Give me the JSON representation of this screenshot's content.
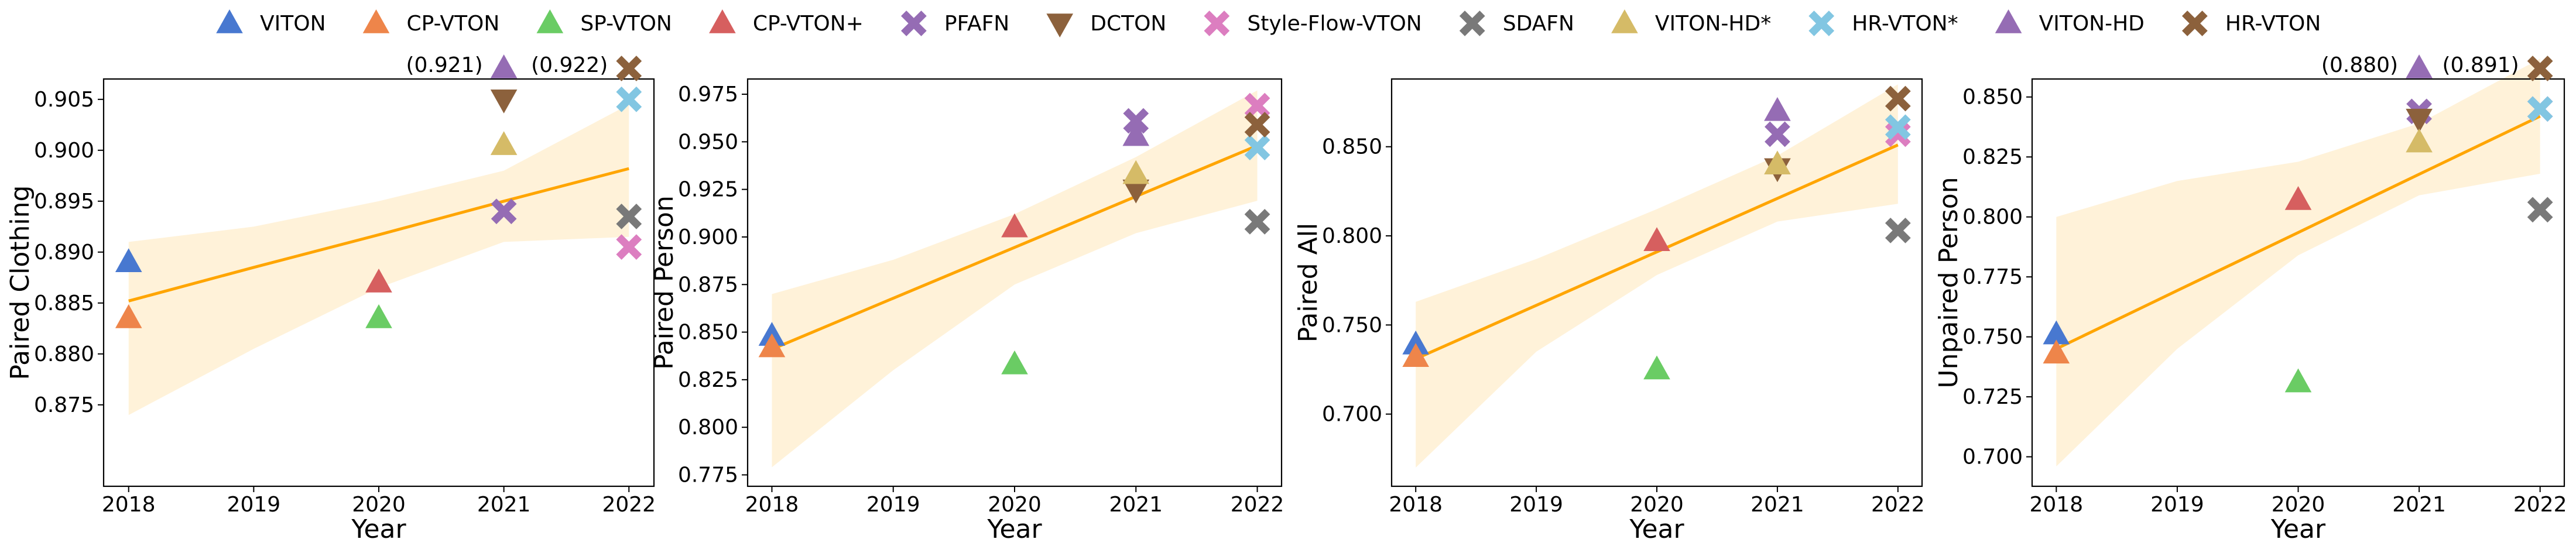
{
  "legend": [
    {
      "name": "VITON",
      "color": "#4878d0",
      "marker": "^"
    },
    {
      "name": "CP-VTON",
      "color": "#ee854a",
      "marker": "^"
    },
    {
      "name": "SP-VTON",
      "color": "#6acc64",
      "marker": "^"
    },
    {
      "name": "CP-VTON+",
      "color": "#d65f5f",
      "marker": "^"
    },
    {
      "name": "PFAFN",
      "color": "#956cb4",
      "marker": "x"
    },
    {
      "name": "DCTON",
      "color": "#8c613c",
      "marker": "v"
    },
    {
      "name": "Style-Flow-VTON",
      "color": "#dc7ec0",
      "marker": "x"
    },
    {
      "name": "SDAFN",
      "color": "#797979",
      "marker": "x"
    },
    {
      "name": "VITON-HD*",
      "color": "#d5bb67",
      "marker": "^"
    },
    {
      "name": "HR-VTON*",
      "color": "#82c6e2",
      "marker": "x"
    },
    {
      "name": "VITON-HD",
      "color": "#956cb4",
      "marker": "^"
    },
    {
      "name": "HR-VTON",
      "color": "#8c613c",
      "marker": "x"
    }
  ],
  "fit_color": "#ffa500",
  "chart_data": [
    {
      "type": "scatter",
      "ylabel": "Paired Clothing",
      "xlabel": "Year",
      "xlim": [
        2017.8,
        2022.2
      ],
      "xticks": [
        2018,
        2019,
        2020,
        2021,
        2022
      ],
      "ylim": [
        0.867,
        0.907
      ],
      "yticks": [
        0.875,
        {
          "value": 0.88,
          "label": "0.880"
        },
        0.885,
        {
          "value": 0.89,
          "label": "0.890"
        },
        0.895,
        {
          "value": 0.9,
          "label": "0.900"
        },
        0.905
      ],
      "series": [
        {
          "x": [
            2018
          ],
          "values": [
            0.889
          ]
        },
        {
          "x": [
            2018
          ],
          "values": [
            0.8835
          ]
        },
        {
          "x": [
            2020
          ],
          "values": [
            0.8835
          ]
        },
        {
          "x": [
            2020
          ],
          "values": [
            0.887
          ]
        },
        {
          "x": [
            2021
          ],
          "values": [
            0.894
          ]
        },
        {
          "x": [
            2021
          ],
          "values": [
            0.905
          ]
        },
        {
          "x": [
            2022
          ],
          "values": [
            0.8905
          ]
        },
        {
          "x": [
            2022
          ],
          "values": [
            0.8935
          ]
        },
        {
          "x": [
            2021
          ],
          "values": [
            0.9005
          ]
        },
        {
          "x": [
            2022
          ],
          "values": [
            0.905
          ]
        },
        {
          "x": [
            2021
          ],
          "values": [
            0.921
          ],
          "value_labels": [
            "(0.921)"
          ]
        },
        {
          "x": [
            2022
          ],
          "values": [
            0.922
          ],
          "value_labels": [
            "(0.922)"
          ]
        }
      ],
      "fit": {
        "x": [
          2018,
          2019,
          2020,
          2021,
          2022
        ],
        "values": [
          0.8852,
          0.8885,
          0.8917,
          0.895,
          0.8982
        ],
        "lower": [
          0.874,
          0.8805,
          0.8865,
          0.891,
          0.8915
        ],
        "upper": [
          0.891,
          0.8925,
          0.895,
          0.898,
          0.9045
        ]
      }
    },
    {
      "type": "scatter",
      "ylabel": "Paired Person",
      "xlabel": "Year",
      "xlim": [
        2017.8,
        2022.2
      ],
      "xticks": [
        2018,
        2019,
        2020,
        2021,
        2022
      ],
      "ylim": [
        0.769,
        0.983
      ],
      "yticks": [
        0.775,
        {
          "value": 0.8,
          "label": "0.800"
        },
        0.825,
        {
          "value": 0.85,
          "label": "0.850"
        },
        0.875,
        {
          "value": 0.9,
          "label": "0.900"
        },
        0.925,
        {
          "value": 0.95,
          "label": "0.950"
        },
        0.975
      ],
      "series": [
        {
          "x": [
            2018
          ],
          "values": [
            0.848
          ]
        },
        {
          "x": [
            2018
          ],
          "values": [
            0.842
          ]
        },
        {
          "x": [
            2020
          ],
          "values": [
            0.833
          ]
        },
        {
          "x": [
            2020
          ],
          "values": [
            0.905
          ]
        },
        {
          "x": [
            2021
          ],
          "values": [
            0.961
          ]
        },
        {
          "x": [
            2021
          ],
          "values": [
            0.925
          ]
        },
        {
          "x": [
            2022
          ],
          "values": [
            0.969
          ]
        },
        {
          "x": [
            2022
          ],
          "values": [
            0.908
          ]
        },
        {
          "x": [
            2021
          ],
          "values": [
            0.933
          ]
        },
        {
          "x": [
            2022
          ],
          "values": [
            0.947
          ]
        },
        {
          "x": [
            2021
          ],
          "values": [
            0.953
          ]
        },
        {
          "x": [
            2022
          ],
          "values": [
            0.959
          ]
        }
      ],
      "fit": {
        "x": [
          2018,
          2019,
          2020,
          2021,
          2022
        ],
        "values": [
          0.841,
          0.8678,
          0.8945,
          0.9213,
          0.948
        ],
        "lower": [
          0.779,
          0.83,
          0.875,
          0.902,
          0.919
        ],
        "upper": [
          0.87,
          0.888,
          0.912,
          0.942,
          0.977
        ]
      }
    },
    {
      "type": "scatter",
      "ylabel": "Paired All",
      "xlabel": "Year",
      "xlim": [
        2017.8,
        2022.2
      ],
      "xticks": [
        2018,
        2019,
        2020,
        2021,
        2022
      ],
      "ylim": [
        0.6595,
        0.888
      ],
      "yticks": [
        {
          "value": 0.7,
          "label": "0.700"
        },
        {
          "value": 0.75,
          "label": "0.750"
        },
        {
          "value": 0.8,
          "label": "0.800"
        },
        {
          "value": 0.85,
          "label": "0.850"
        }
      ],
      "series": [
        {
          "x": [
            2018
          ],
          "values": [
            0.739
          ]
        },
        {
          "x": [
            2018
          ],
          "values": [
            0.732
          ]
        },
        {
          "x": [
            2020
          ],
          "values": [
            0.725
          ]
        },
        {
          "x": [
            2020
          ],
          "values": [
            0.797
          ]
        },
        {
          "x": [
            2021
          ],
          "values": [
            0.857
          ]
        },
        {
          "x": [
            2021
          ],
          "values": [
            0.838
          ]
        },
        {
          "x": [
            2022
          ],
          "values": [
            0.857
          ]
        },
        {
          "x": [
            2022
          ],
          "values": [
            0.803
          ]
        },
        {
          "x": [
            2021
          ],
          "values": [
            0.84
          ]
        },
        {
          "x": [
            2022
          ],
          "values": [
            0.861
          ]
        },
        {
          "x": [
            2021
          ],
          "values": [
            0.87
          ]
        },
        {
          "x": [
            2022
          ],
          "values": [
            0.877
          ]
        }
      ],
      "fit": {
        "x": [
          2018,
          2019,
          2020,
          2021,
          2022
        ],
        "values": [
          0.731,
          0.761,
          0.791,
          0.821,
          0.851
        ],
        "lower": [
          0.67,
          0.735,
          0.778,
          0.808,
          0.818
        ],
        "upper": [
          0.763,
          0.787,
          0.815,
          0.845,
          0.885
        ]
      }
    },
    {
      "type": "scatter",
      "ylabel": "Unpaired Person",
      "xlabel": "Year",
      "xlim": [
        2017.8,
        2022.2
      ],
      "xticks": [
        2018,
        2019,
        2020,
        2021,
        2022
      ],
      "ylim": [
        0.6877,
        0.8575
      ],
      "yticks": [
        {
          "value": 0.7,
          "label": "0.700"
        },
        0.725,
        {
          "value": 0.75,
          "label": "0.750"
        },
        0.775,
        {
          "value": 0.8,
          "label": "0.800"
        },
        0.825,
        {
          "value": 0.85,
          "label": "0.850"
        }
      ],
      "series": [
        {
          "x": [
            2018
          ],
          "values": [
            0.751
          ]
        },
        {
          "x": [
            2018
          ],
          "values": [
            0.743
          ]
        },
        {
          "x": [
            2020
          ],
          "values": [
            0.731
          ]
        },
        {
          "x": [
            2020
          ],
          "values": [
            0.807
          ]
        },
        {
          "x": [
            2021
          ],
          "values": [
            0.844
          ]
        },
        {
          "x": [
            2021
          ],
          "values": [
            0.841
          ]
        },
        {
          "x": [
            2022
          ],
          "values": [
            0.845
          ]
        },
        {
          "x": [
            2022
          ],
          "values": [
            0.803
          ]
        },
        {
          "x": [
            2021
          ],
          "values": [
            0.831
          ]
        },
        {
          "x": [
            2022
          ],
          "values": [
            0.845
          ]
        },
        {
          "x": [
            2021
          ],
          "values": [
            0.88
          ],
          "value_labels": [
            "(0.880)"
          ]
        },
        {
          "x": [
            2022
          ],
          "values": [
            0.891
          ],
          "value_labels": [
            "(0.891)"
          ]
        }
      ],
      "fit": {
        "x": [
          2018,
          2019,
          2020,
          2021,
          2022
        ],
        "values": [
          0.745,
          0.7693,
          0.7935,
          0.8178,
          0.842
        ],
        "lower": [
          0.696,
          0.745,
          0.784,
          0.809,
          0.818
        ],
        "upper": [
          0.8,
          0.815,
          0.823,
          0.839,
          0.866
        ]
      }
    }
  ]
}
